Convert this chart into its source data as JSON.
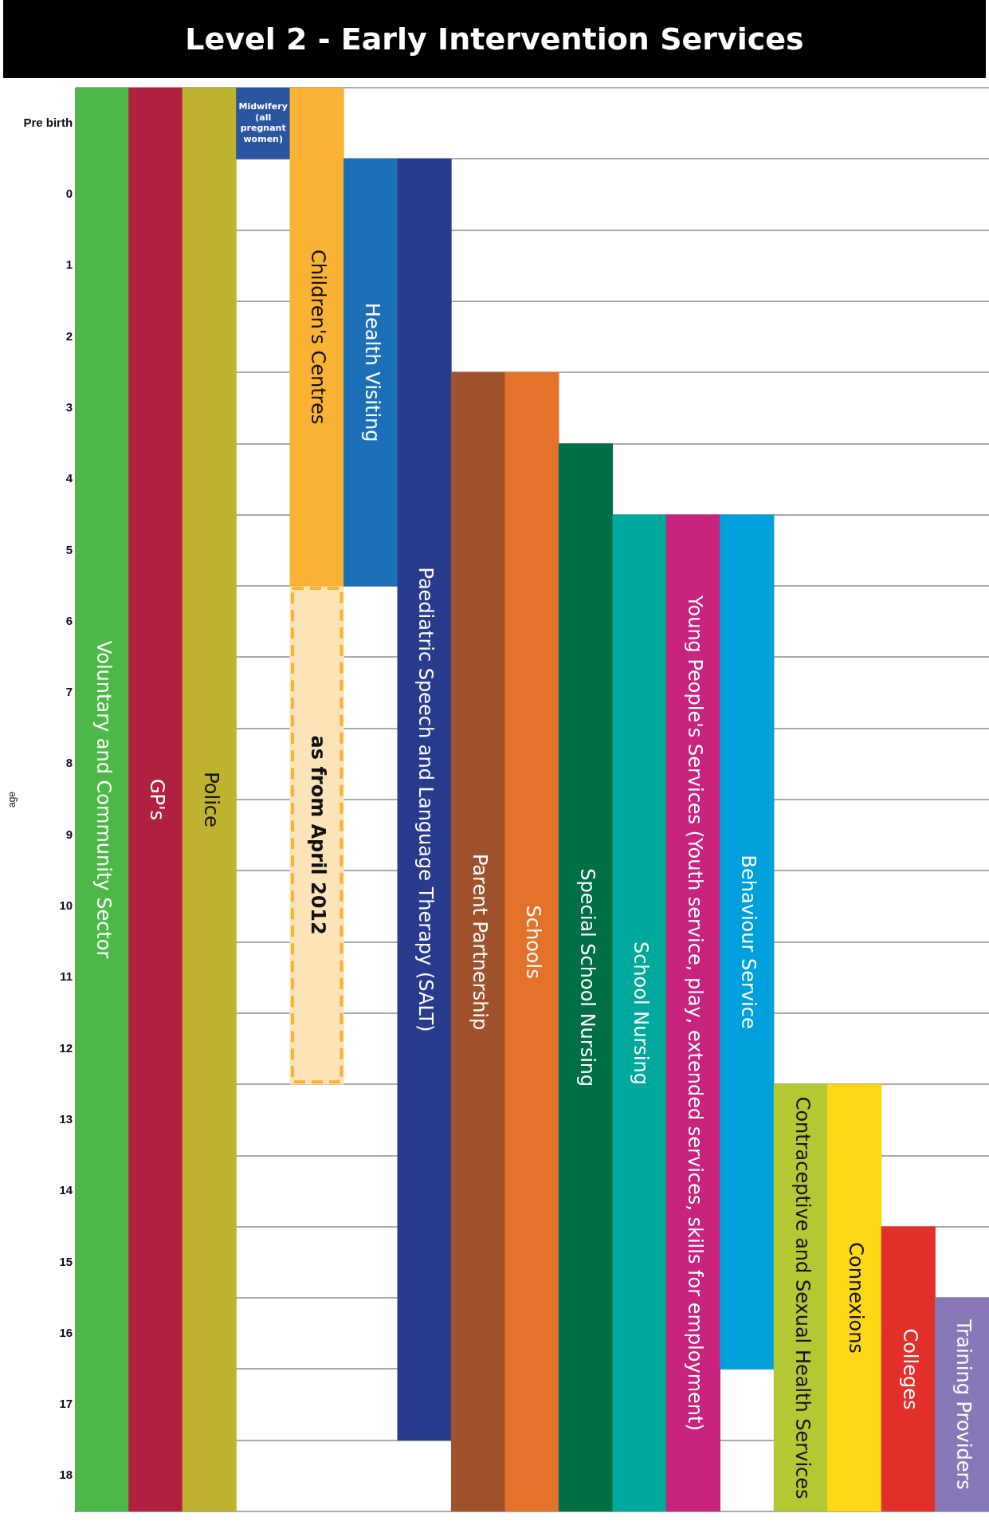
{
  "chart_data": {
    "type": "bar",
    "title": "Level 2 - Early Intervention Services",
    "ylabel": "age",
    "categories": [
      "Voluntary and Community Sector",
      "GP's",
      "Police",
      "Midwifery (all pregnant women)",
      "Children's Centres",
      "Health Visiting",
      "Paediatric Speech and Language Therapy (SALT)",
      "Parent Partnership",
      "Schools",
      "Special School Nursing",
      "School Nursing",
      "Young People's Services (Youth service, play, extended services, skills for employment)",
      "Behaviour Service",
      "Contraceptive and Sexual Health Services",
      "Connexions",
      "Colleges",
      "Training Providers"
    ],
    "series": [
      {
        "base": [
          -1.5,
          -1.5,
          -1.5,
          -1.5,
          -1.5,
          -0.5,
          -0.5,
          2.5,
          2.5,
          3.5,
          4.5,
          4.5,
          4.5,
          12.5,
          12.5,
          14.5,
          15.5
        ],
        "values": [
          20,
          20,
          20,
          1,
          7,
          6,
          18,
          16,
          16,
          15,
          14,
          14,
          12,
          6,
          6,
          4,
          3
        ],
        "colors": [
          "#4db848",
          "#b0203f",
          "#bfb22f",
          "#2a55a0",
          "#f9b233",
          "#1d70b7",
          "#283b8c",
          "#a0522d",
          "#e5722a",
          "#006f45",
          "#00a99d",
          "#c8237d",
          "#00a0dc",
          "#b4c833",
          "#fcd816",
          "#e4302b",
          "#8878b8"
        ]
      },
      {
        "name": "as from April 2012",
        "base": [
          null,
          null,
          null,
          null,
          5.5,
          null,
          null,
          null,
          null,
          null,
          null,
          null,
          null,
          null,
          null,
          null,
          null
        ],
        "values": [
          null,
          null,
          null,
          null,
          7,
          null,
          null,
          null,
          null,
          null,
          null,
          null,
          null,
          null,
          null,
          null,
          null
        ],
        "color": "#fde3b8",
        "line_style": "dashed"
      }
    ],
    "ylim": [
      18.5,
      -1.5
    ],
    "yticks": [
      {
        "value": -1,
        "label": "Pre birth"
      },
      0,
      1,
      2,
      3,
      4,
      5,
      6,
      7,
      8,
      9,
      10,
      11,
      12,
      13,
      14,
      15,
      16,
      17,
      18
    ],
    "grid": "y",
    "legend": false,
    "tick_labels": "y"
  }
}
